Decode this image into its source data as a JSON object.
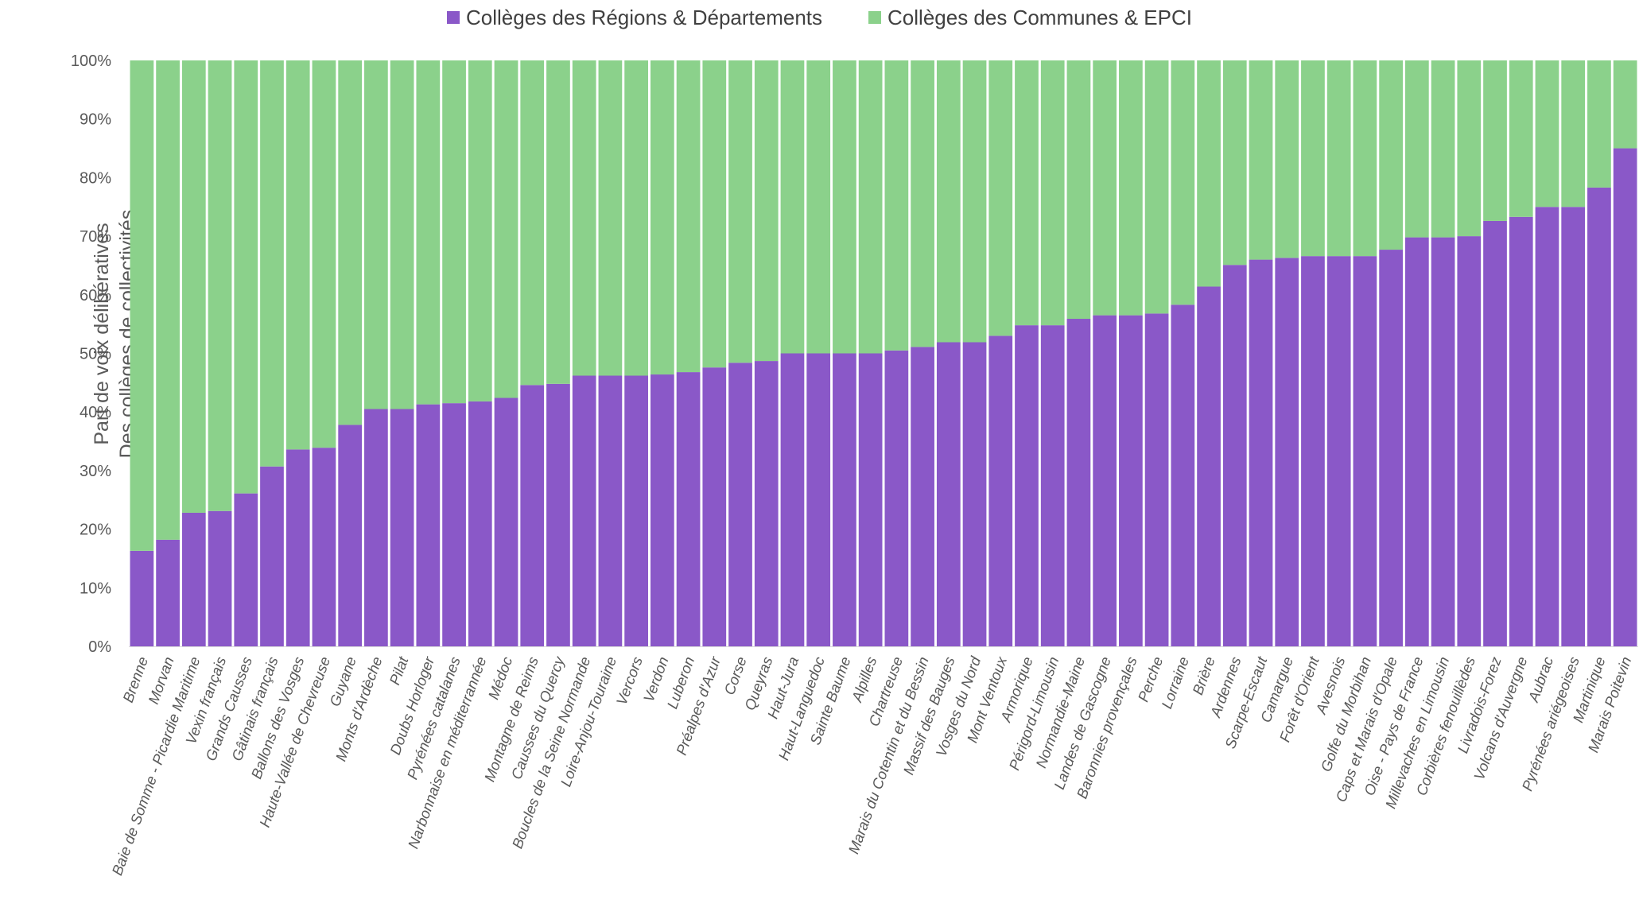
{
  "chart_data": {
    "type": "bar",
    "stacked": true,
    "percent_stacked": true,
    "grid": false,
    "legend_position": "top-center",
    "ylabel": [
      "Part de voix délibératives",
      "Des collèges de collectivités"
    ],
    "ylim": [
      0,
      100
    ],
    "yticks": [
      "0%",
      "10%",
      "20%",
      "30%",
      "40%",
      "50%",
      "60%",
      "70%",
      "80%",
      "90%",
      "100%"
    ],
    "categories": [
      "Brenne",
      "Morvan",
      "Baie de Somme - Picardie Maritime",
      "Vexin français",
      "Grands Causses",
      "Gâtinais français",
      "Ballons des Vosges",
      "Haute-Vallée de Chevreuse",
      "Guyane",
      "Monts d'Ardèche",
      "Pilat",
      "Doubs Horloger",
      "Pyrénées catalanes",
      "Narbonnaise en méditerrannée",
      "Médoc",
      "Montagne de Reims",
      "Causses du Quercy",
      "Boucles de la Seine Normande",
      "Loire-Anjou-Touraine",
      "Vercors",
      "Verdon",
      "Luberon",
      "Préalpes d'Azur",
      "Corse",
      "Queyras",
      "Haut-Jura",
      "Haut-Languedoc",
      "Sainte Baume",
      "Alpilles",
      "Chartreuse",
      "Marais du Cotentin et du Bessin",
      "Massif des Bauges",
      "Vosges du Nord",
      "Mont Ventoux",
      "Armorique",
      "Périgord-Limousin",
      "Normandie-Maine",
      "Landes de Gascogne",
      "Baronnies provençales",
      "Perche",
      "Lorraine",
      "Brière",
      "Ardennes",
      "Scarpe-Escaut",
      "Camargue",
      "Forêt d'Orient",
      "Avesnois",
      "Golfe du Morbihan",
      "Caps et Marais d'Opale",
      "Oise - Pays de France",
      "Millevaches en Limousin",
      "Corbières fenouillèdes",
      "Livradois-Forez",
      "Volcans d'Auvergne",
      "Aubrac",
      "Pyrénées ariégeoises",
      "Martinique",
      "Marais Poitevin"
    ],
    "series": [
      {
        "name": "Collèges des Régions & Départements",
        "color": "#8a58c8",
        "values": [
          16.3,
          18.2,
          22.8,
          23.1,
          26.1,
          30.7,
          33.6,
          33.9,
          37.8,
          40.5,
          40.5,
          41.3,
          41.5,
          41.8,
          42.4,
          44.6,
          44.8,
          46.2,
          46.2,
          46.2,
          46.4,
          46.8,
          47.6,
          48.4,
          48.7,
          50.0,
          50.0,
          50.0,
          50.0,
          50.5,
          51.1,
          51.9,
          51.9,
          53.0,
          54.8,
          54.8,
          55.9,
          56.5,
          56.5,
          56.8,
          58.3,
          61.4,
          65.1,
          66.0,
          66.3,
          66.6,
          66.6,
          66.6,
          67.7,
          69.8,
          69.8,
          70.0,
          72.6,
          73.3,
          75.0,
          75.0,
          78.3,
          85.0
        ]
      },
      {
        "name": "Collèges des Communes & EPCI",
        "color": "#8bd18b",
        "values": [
          83.7,
          81.8,
          77.2,
          76.9,
          73.9,
          69.3,
          66.4,
          66.1,
          62.2,
          59.5,
          59.5,
          58.7,
          58.5,
          58.2,
          57.6,
          55.4,
          55.2,
          53.8,
          53.8,
          53.8,
          53.6,
          53.2,
          52.4,
          51.6,
          51.3,
          50.0,
          50.0,
          50.0,
          50.0,
          49.5,
          48.9,
          48.1,
          48.1,
          47.0,
          45.2,
          45.2,
          44.1,
          43.5,
          43.5,
          43.2,
          41.7,
          38.6,
          34.9,
          34.0,
          33.7,
          33.4,
          33.4,
          33.4,
          32.3,
          30.2,
          30.2,
          30.0,
          27.4,
          26.7,
          25.0,
          25.0,
          21.7,
          15.0
        ]
      }
    ]
  }
}
